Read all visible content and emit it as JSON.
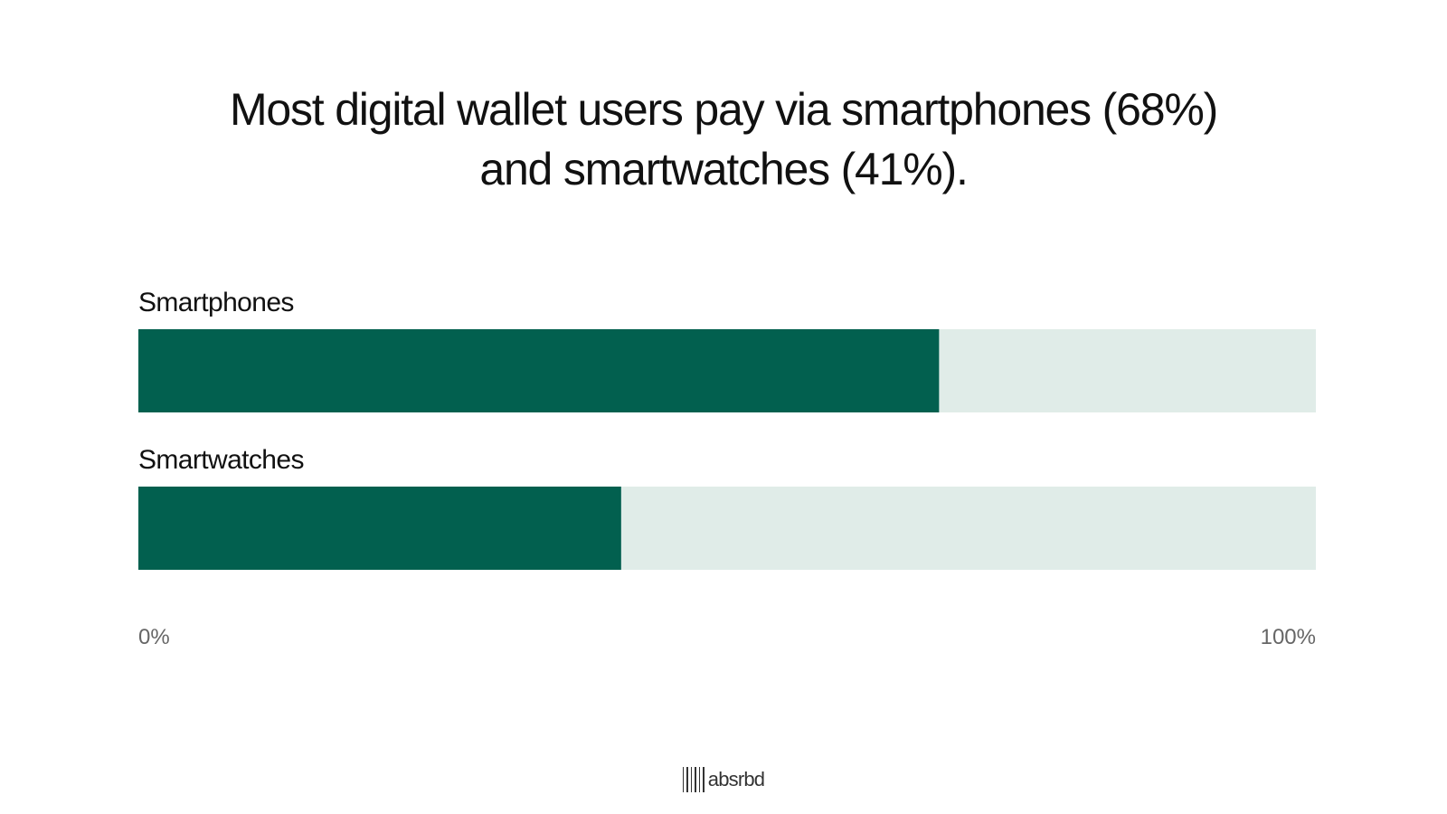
{
  "chart_data": {
    "type": "bar",
    "orientation": "horizontal",
    "title_lines": [
      "Most digital wallet users pay via smartphones (68%)",
      "and smartwatches (41%)."
    ],
    "categories": [
      "Smartphones",
      "Smartwatches"
    ],
    "values": [
      68,
      41
    ],
    "unit": "%",
    "xlim": [
      0,
      100
    ],
    "x_tick_labels": [
      "0%",
      "100%"
    ],
    "grid": false,
    "legend": "none",
    "colors": {
      "bar_fill": "#02604F",
      "bar_track": "#E0ECE8",
      "category_label": "#111111",
      "tick_label": "#666666"
    }
  },
  "brand": {
    "logo_text": "absrbd"
  }
}
